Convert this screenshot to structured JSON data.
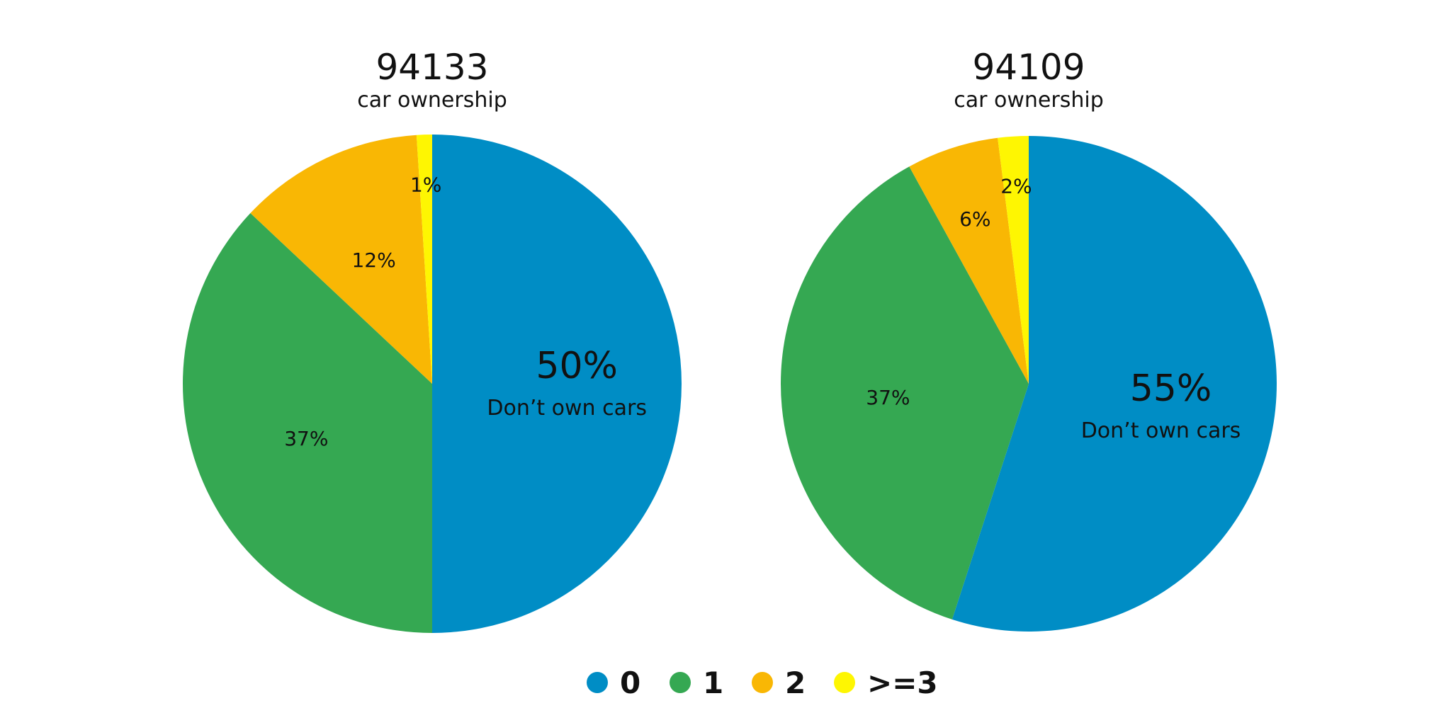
{
  "legend": {
    "items": [
      {
        "label": "0",
        "color": "#008DC5"
      },
      {
        "label": "1",
        "color": "#35A852"
      },
      {
        "label": "2",
        "color": "#F9B704"
      },
      {
        "label": ">=3",
        "color": "#FEF602"
      }
    ]
  },
  "chart_data": [
    {
      "type": "pie",
      "title": "94133",
      "subtitle": "car ownership",
      "categories": [
        "0",
        "1",
        "2",
        ">=3"
      ],
      "values": [
        50,
        37,
        12,
        1
      ],
      "labels": [
        "50%",
        "37%",
        "12%",
        "1%"
      ],
      "highlight_note": "Don’t own cars",
      "colors": [
        "#008DC5",
        "#35A852",
        "#F9B704",
        "#FEF602"
      ]
    },
    {
      "type": "pie",
      "title": "94109",
      "subtitle": "car ownership",
      "categories": [
        "0",
        "1",
        "2",
        ">=3"
      ],
      "values": [
        55,
        37,
        6,
        2
      ],
      "labels": [
        "55%",
        "37%",
        "6%",
        "2%"
      ],
      "highlight_note": "Don’t own cars",
      "colors": [
        "#008DC5",
        "#35A852",
        "#F9B704",
        "#FEF602"
      ]
    }
  ]
}
